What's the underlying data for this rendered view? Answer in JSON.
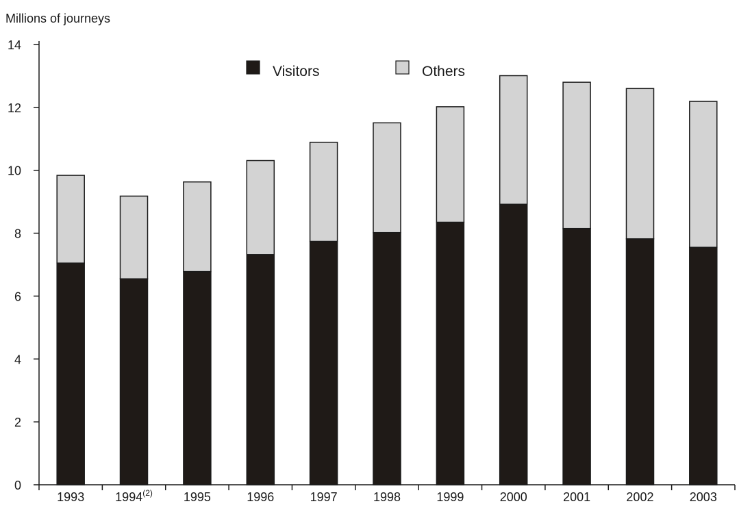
{
  "chart_data": {
    "type": "bar",
    "stacked": true,
    "ylabel": "Millions of journeys",
    "ylim": [
      0,
      14
    ],
    "yticks": [
      0,
      2,
      4,
      6,
      8,
      10,
      12,
      14
    ],
    "grid": false,
    "legend_position": "top",
    "categories": [
      {
        "label": "1993",
        "sup": ""
      },
      {
        "label": "1994",
        "sup": "(2)"
      },
      {
        "label": "1995",
        "sup": ""
      },
      {
        "label": "1996",
        "sup": ""
      },
      {
        "label": "1997",
        "sup": ""
      },
      {
        "label": "1998",
        "sup": ""
      },
      {
        "label": "1999",
        "sup": ""
      },
      {
        "label": "2000",
        "sup": ""
      },
      {
        "label": "2001",
        "sup": ""
      },
      {
        "label": "2002",
        "sup": ""
      },
      {
        "label": "2003",
        "sup": ""
      }
    ],
    "series": [
      {
        "name": "Visitors",
        "color": "#1f1a17",
        "values": [
          7.05,
          6.55,
          6.78,
          7.32,
          7.74,
          8.02,
          8.35,
          8.92,
          8.15,
          7.82,
          7.55
        ]
      },
      {
        "name": "Others",
        "color": "#d3d3d3",
        "values": [
          2.79,
          2.63,
          2.85,
          2.99,
          3.15,
          3.49,
          3.67,
          4.09,
          4.65,
          4.78,
          4.64
        ]
      }
    ]
  }
}
